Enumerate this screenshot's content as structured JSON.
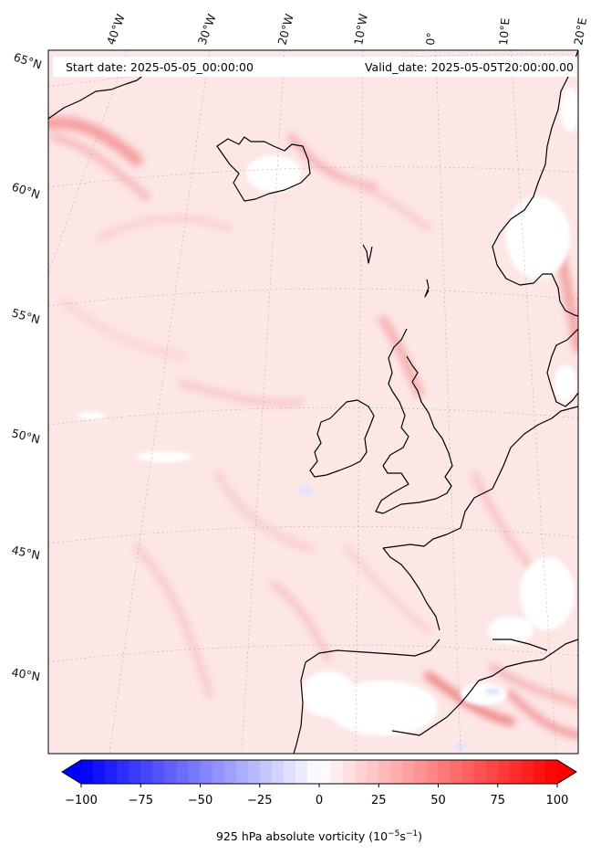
{
  "header": {
    "start_date": "Start date: 2025-05-05_00:00:00",
    "valid_date": "Valid_date: 2025-05-05T20:00:00.00"
  },
  "map": {
    "lon_labels": [
      "40°W",
      "30°W",
      "20°W",
      "10°W",
      "0°",
      "10°E",
      "20°E"
    ],
    "lat_labels": [
      "65°N",
      "60°N",
      "55°N",
      "50°N",
      "45°N",
      "40°N"
    ]
  },
  "colorbar": {
    "ticks": [
      "−100",
      "−75",
      "−50",
      "−25",
      "0",
      "25",
      "50",
      "75",
      "100"
    ],
    "tick_values": [
      -100,
      -75,
      -50,
      -25,
      0,
      25,
      50,
      75,
      100
    ],
    "range": [
      -100,
      100
    ],
    "extend": "both",
    "colormap": "bwr",
    "label_main": "925 hPa absolute vorticity (10",
    "label_exp1": "−5",
    "label_mid": "s",
    "label_exp2": "−1",
    "label_end": ")"
  },
  "colors": {
    "coastline": "#000000",
    "background_field": "#fde6e6",
    "positive_max": "#ff0000",
    "negative_max": "#0000ff"
  }
}
